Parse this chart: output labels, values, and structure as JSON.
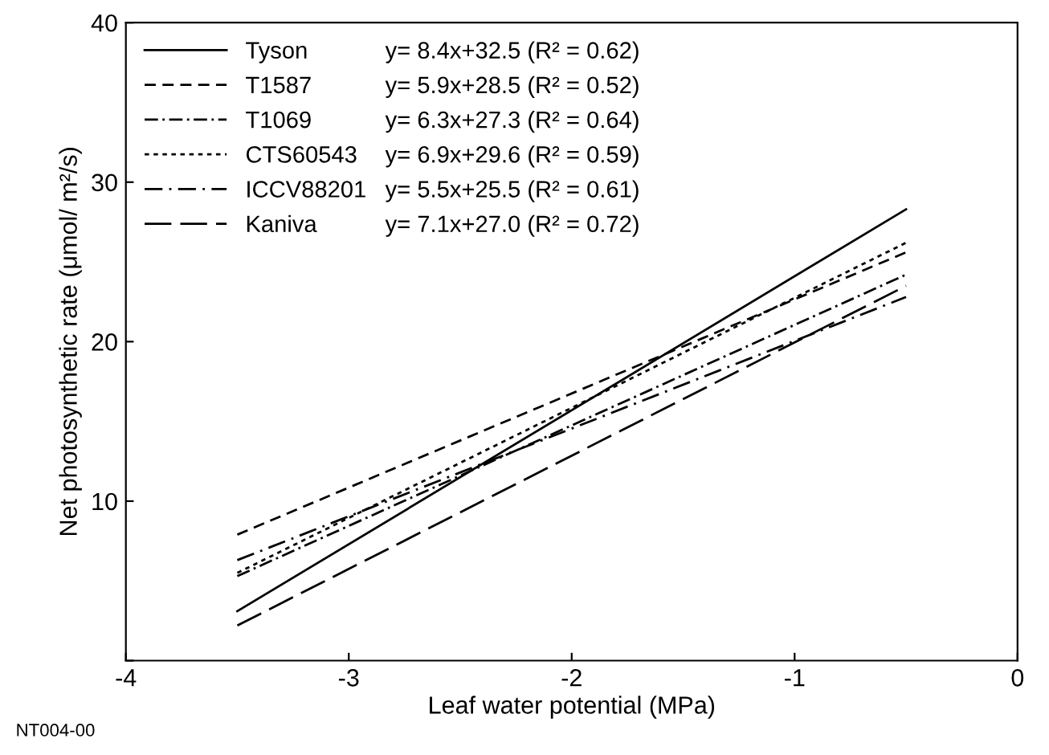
{
  "chart_data": {
    "type": "line",
    "xlabel": "Leaf water potential (MPa)",
    "ylabel": "Net photosynthetic rate (μmol/ m²/s)",
    "xlim": [
      -4,
      0
    ],
    "xticks": [
      -4,
      -3,
      -2,
      -1,
      0
    ],
    "ylim": [
      0,
      40
    ],
    "yticks": [
      {
        "value": 0,
        "label": null
      },
      10,
      20,
      30,
      40
    ],
    "grid": false,
    "legend": "top left",
    "marker": "none",
    "x": [
      -3.5,
      -0.5
    ],
    "series": [
      {
        "name": "Tyson",
        "color": "#000000",
        "line_style": "solid",
        "values": [
          3.1,
          28.3
        ]
      },
      {
        "name": "T1587",
        "color": "#000000",
        "line_style": "dashed",
        "values": [
          7.9,
          25.6
        ]
      },
      {
        "name": "T1069",
        "color": "#000000",
        "line_style": "dashdot",
        "values": [
          5.3,
          24.2
        ]
      },
      {
        "name": "CTS60543",
        "color": "#000000",
        "line_style": "dotted",
        "values": [
          5.5,
          26.2
        ]
      },
      {
        "name": "ICCV88201",
        "color": "#000000",
        "line_style": "longdashdot",
        "values": [
          6.3,
          22.8
        ]
      },
      {
        "name": "Kaniva",
        "color": "#000000",
        "line_style": "longdash",
        "values": [
          2.2,
          23.5
        ]
      }
    ],
    "annotations": [
      "y= 8.4x+32.5 (R² = 0.62)",
      "y= 5.9x+28.5 (R² = 0.52)",
      "y= 6.3x+27.3 (R² = 0.64)",
      "y= 6.9x+29.6 (R² = 0.59)",
      "y= 5.5x+25.5 (R² = 0.61)",
      "y= 7.1x+27.0 (R² = 0.72)",
      "NT004-00"
    ]
  }
}
